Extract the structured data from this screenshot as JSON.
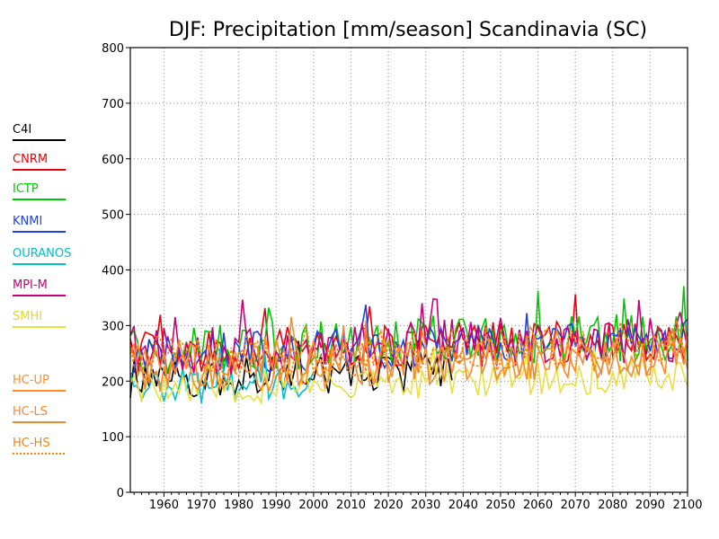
{
  "chart_data": {
    "type": "line",
    "title": "DJF: Precipitation [mm/season] Scandinavia (SC)",
    "xlabel": "",
    "ylabel": "",
    "xlim": [
      1951,
      2100
    ],
    "ylim": [
      0,
      800
    ],
    "x_ticks": [
      1960,
      1970,
      1980,
      1990,
      2000,
      2010,
      2020,
      2030,
      2040,
      2050,
      2060,
      2070,
      2080,
      2090,
      2100
    ],
    "y_ticks": [
      0,
      100,
      200,
      300,
      400,
      500,
      600,
      700,
      800
    ],
    "grid": true,
    "legend_position": "left",
    "series": [
      {
        "name": "C4I",
        "color": "#000000",
        "dashed": false,
        "x_start": 1951,
        "x_end": 2037,
        "base_start": 205,
        "base_end": 215,
        "amp": 35,
        "seed": 11
      },
      {
        "name": "CNRM",
        "color": "#e8000a",
        "dashed": false,
        "x_start": 1951,
        "x_end": 2100,
        "base_start": 250,
        "base_end": 275,
        "amp": 40,
        "seed": 23
      },
      {
        "name": "ICTP",
        "color": "#00c800",
        "dashed": false,
        "x_start": 1951,
        "x_end": 2100,
        "base_start": 255,
        "base_end": 280,
        "amp": 45,
        "seed": 37
      },
      {
        "name": "KNMI",
        "color": "#2040e0",
        "dashed": false,
        "x_start": 1951,
        "x_end": 2100,
        "base_start": 245,
        "base_end": 275,
        "amp": 38,
        "seed": 41
      },
      {
        "name": "OURANOS",
        "color": "#00c0c8",
        "dashed": false,
        "x_start": 1951,
        "x_end": 2000,
        "base_start": 185,
        "base_end": 200,
        "amp": 35,
        "seed": 53
      },
      {
        "name": "MPI-M",
        "color": "#c80078",
        "dashed": false,
        "x_start": 1951,
        "x_end": 2100,
        "base_start": 250,
        "base_end": 280,
        "amp": 45,
        "seed": 67
      },
      {
        "name": "SMHI",
        "color": "#e8e040",
        "dashed": false,
        "x_start": 1951,
        "x_end": 2100,
        "base_start": 185,
        "base_end": 210,
        "amp": 30,
        "seed": 79
      },
      {
        "name": "HC-UP",
        "color": "#ff8c2a",
        "dashed": false,
        "x_start": 1951,
        "x_end": 2100,
        "base_start": 225,
        "base_end": 250,
        "amp": 40,
        "seed": 83
      },
      {
        "name": "HC-LS",
        "color": "#f08a30",
        "dashed": false,
        "x_start": 1951,
        "x_end": 2100,
        "base_start": 215,
        "base_end": 240,
        "amp": 38,
        "seed": 97
      },
      {
        "name": "HC-HS",
        "color": "#ff8000",
        "dashed": true,
        "x_start": 1951,
        "x_end": 2100,
        "base_start": 235,
        "base_end": 270,
        "amp": 45,
        "seed": 101
      }
    ]
  }
}
